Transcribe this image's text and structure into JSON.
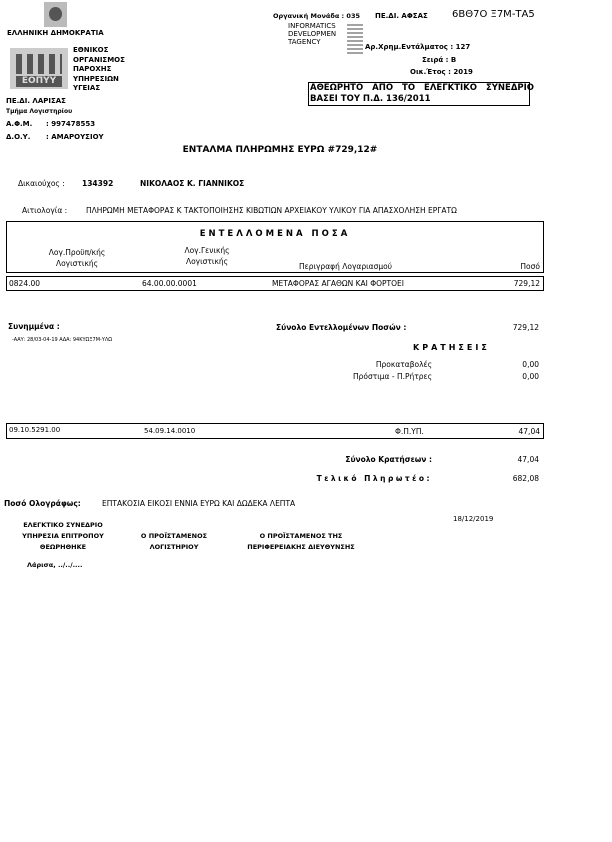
{
  "header": {
    "republic": "ΕΛΛΗΝΙΚΗ ΔΗΜΟΚΡΑΤΙΑ",
    "logo_text": "ΕΟΠΥΥ",
    "org_lines": [
      "ΕΘΝΙΚΟΣ",
      "ΟΡΓΑΝΙΣΜΟΣ",
      "ΠΑΡΟΧΗΣ",
      "ΥΠΗΡΕΣΙΩΝ",
      "ΥΓΕΙΑΣ"
    ],
    "unit": "ΠΕ.ΔΙ. ΛΑΡΙΣΑΣ",
    "department": "Τμήμα Λογιστηρίου",
    "afm_label": "Α.Φ.Μ.",
    "afm_value": ": 997478553",
    "doy_label": "Δ.Ο.Υ.",
    "doy_value": ": ΑΜΑΡΟΥΣΙΟΥ"
  },
  "top_right": {
    "org_unit": "Οργανική Μονάδα : 035",
    "unit_short": "ΠΕ.ΔΙ. ΑΦΣΑΣ",
    "ada": "6ΒΘ7Ο Ξ7Μ-ΤΑ5",
    "agency_lines": [
      "INFORMATICS",
      "DEVELOPMEN",
      "TAGENCY"
    ],
    "payment_no": "Αρ.Χρημ.Εντάλματος : 127",
    "series": "Σειρά : Β",
    "fiscal_year": "Οικ.Έτος : 2019",
    "notice_line1": "ΑΘΕΩΡΗΤΟ ΑΠΟ ΤΟ ΕΛΕΓΚΤΙΚΟ ΣΥΝΕΔΡΙΟ",
    "notice_line2": "ΒΑΣΕΙ ΤΟΥ Π.Δ. 136/2011"
  },
  "title": "ΕΝΤΑΛΜΑ ΠΛΗΡΩΜΗΣ ΕΥΡΩ #729,12#",
  "beneficiary": {
    "label": "Δικαιούχος :",
    "code": "134392",
    "name": "ΝΙΚΟΛΑΟΣ Κ. ΓΙΑΝΝΙΚΟΣ"
  },
  "justification": {
    "label": "Αιτιολογία :",
    "text": "ΠΛΗΡΩΜΗ ΜΕΤΑΦΟΡΑΣ Κ ΤΑΚΤΟΠΟΙΗΣΗΣ ΚΙΒΩΤΙΩΝ ΑΡΧΕΙΑΚΟΥ ΥΛΙΚΟΥ ΓΙΑ ΑΠΑΣΧΟΛΗΣΗ ΕΡΓΑΤΩ"
  },
  "amounts": {
    "heading": "ΕΝΤΕΛΛΟΜΕΝΑ ΠΟΣΑ",
    "columns": [
      "Λογ.Προϋπ/κής Λογιστικής",
      "Λογ.Γενικής Λογιστικής",
      "Περιγραφή Λογαριασμού",
      "Ποσό"
    ],
    "col1_l1": "Λογ.Προϋπ/κής",
    "col1_l2": "Λογιστικής",
    "col2_l1": "Λογ.Γενικής",
    "col2_l2": "Λογιστικής",
    "rows": [
      [
        "0824.00",
        "64.00.00.0001",
        "ΜΕΤΑΦΟΡΑΣ ΑΓΑΘΩΝ ΚΑΙ ΦΟΡΤΟΕΙ",
        "729,12"
      ]
    ]
  },
  "attachments": {
    "label": "Συνημμένα :",
    "text": "-ΑΑΥ: 28/03-04-19 ΑΔΑ: 94ΚΥΩΞ7Μ-ΥΛΩ"
  },
  "total_ordered": {
    "label": "Σύνολο Εντελλομένων Ποσών :",
    "value": "729,12"
  },
  "deductions": {
    "heading": "ΚΡΑΤΗΣΕΙΣ",
    "advances_label": "Προκαταβολές",
    "advances_value": "0,00",
    "penalties_label": "Πρόστιμα - Π.Ρήτρες",
    "penalties_value": "0,00",
    "rows": [
      [
        "09.10.5291.00",
        "54.09.14.0010",
        "Φ.Π.ΥΠ.",
        "47,04"
      ]
    ]
  },
  "total_deductions": {
    "label": "Σύνολο Κρατήσεων :",
    "value": "47,04"
  },
  "final_payable": {
    "label": "Τελικό Πληρωτέο:",
    "value": "682,08"
  },
  "amount_words": {
    "label": "Ποσό Ολογράφως:",
    "text": "ΕΠΤΑΚΟΣΙΑ ΕΙΚΟΣΙ ΕΝΝΙΑ ΕΥΡΩ ΚΑΙ ΔΩΔΕΚΑ ΛΕΠΤΑ"
  },
  "date": "18/12/2019",
  "signatures": {
    "audit_l1": "ΕΛΕΓΚΤΙΚΟ ΣΥΝΕΔΡΙΟ",
    "audit_l2": "ΥΠΗΡΕΣΙΑ ΕΠΙΤΡΟΠΟΥ",
    "audit_l3": "ΘΕΩΡΗΘΗΚΕ",
    "acc_l1": "Ο ΠΡΟΪΣΤΑΜΕΝΟΣ",
    "acc_l2": "ΛΟΓΙΣΤΗΡΙΟΥ",
    "reg_l1": "Ο ΠΡΟΪΣΤΑΜΕΝΟΣ ΤΗΣ",
    "reg_l2": "ΠΕΡΙΦΕΡΕΙΑΚΗΣ ΔΙΕΥΘΥΝΣΗΣ",
    "place": "Λάρισα, ../../...."
  }
}
